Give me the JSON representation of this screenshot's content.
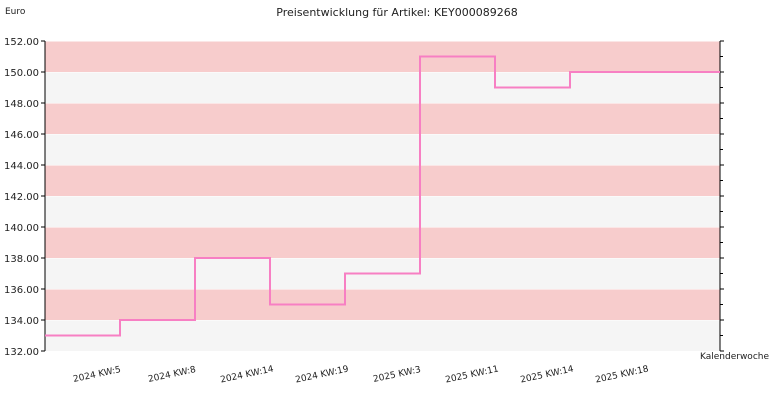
{
  "chart_data": {
    "type": "line",
    "step": true,
    "title": "Preisentwicklung für Artikel: KEY000089268",
    "ylabel": "Euro",
    "xlabel": "Kalenderwoche",
    "ylim": [
      132.0,
      152.0
    ],
    "ytick_step": 2,
    "ytick_labels": [
      "132.00",
      "134.00",
      "136.00",
      "138.00",
      "140.00",
      "142.00",
      "144.00",
      "146.00",
      "148.00",
      "150.00",
      "152.00"
    ],
    "categories": [
      "2024 KW:5",
      "2024 KW:8",
      "2024 KW:14",
      "2024 KW:19",
      "2025 KW:3",
      "2025 KW:11",
      "2025 KW:14",
      "2025 KW:18"
    ],
    "series": [
      {
        "values": [
          133.0,
          134.0,
          138.0,
          135.0,
          137.0,
          151.0,
          149.0,
          150.0
        ]
      }
    ],
    "colors": {
      "line": "#f77fc3",
      "band_dark": "#f7cccc",
      "band_light": "#f5f5f5",
      "grid": "#ffffff",
      "axis": "#000000"
    },
    "grid": true
  }
}
